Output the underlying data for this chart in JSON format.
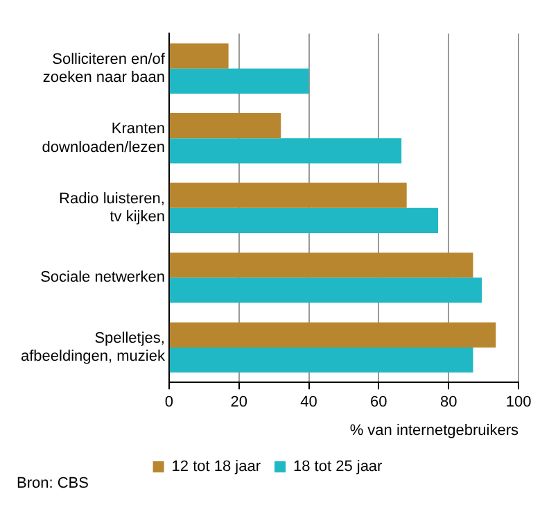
{
  "chart_data": {
    "type": "bar",
    "orientation": "horizontal",
    "categories": [
      "Solliciteren en/of zoeken naar baan",
      "Kranten downloaden/lezen",
      "Radio luisteren, tv kijken",
      "Sociale netwerken",
      "Spelletjes, afbeeldingen, muziek"
    ],
    "series": [
      {
        "name": "12 tot 18 jaar",
        "color": "#b8862e",
        "values": [
          17,
          32,
          68,
          87,
          93.5
        ]
      },
      {
        "name": "18 tot 25 jaar",
        "color": "#1fb8c4",
        "values": [
          40,
          66.5,
          77,
          89.5,
          87
        ]
      }
    ],
    "xlim": [
      0,
      100
    ],
    "xticks": [
      0,
      20,
      40,
      60,
      80,
      100
    ],
    "xlabel": "% van internetgebruikers",
    "grid": "x",
    "legend": "bottom",
    "annotations": [
      "Bron: CBS"
    ]
  }
}
